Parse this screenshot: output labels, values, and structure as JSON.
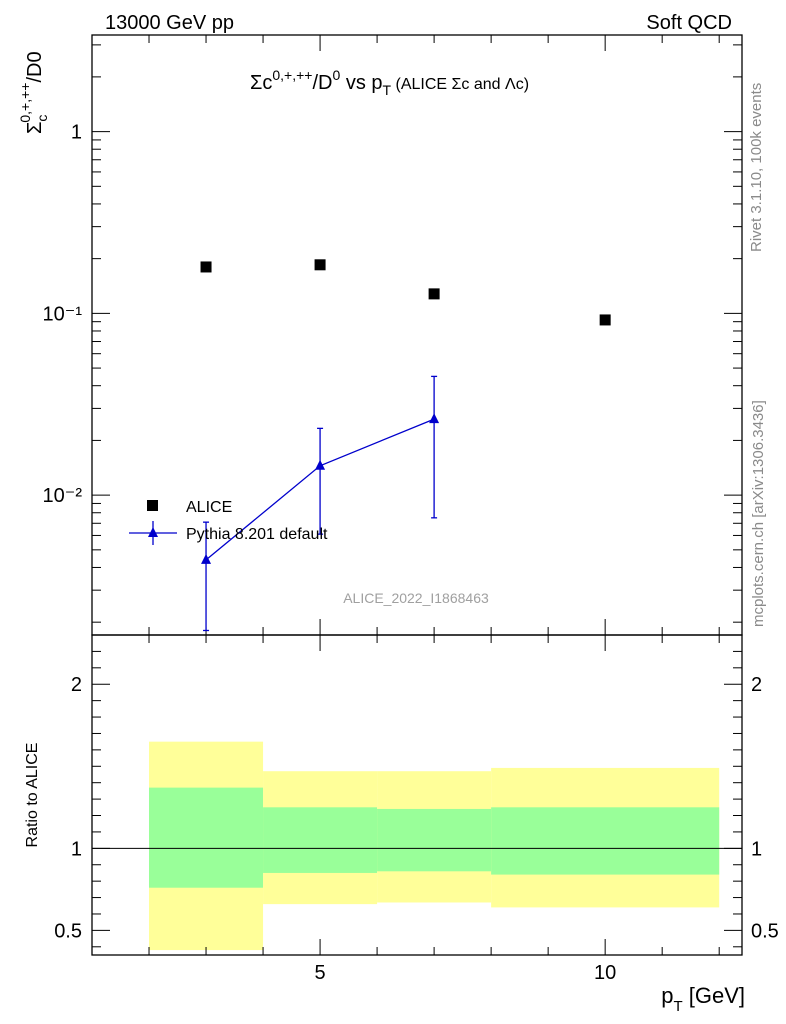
{
  "header": {
    "left": "13000 GeV pp",
    "right": "Soft QCD"
  },
  "main_plot": {
    "title_main": "Σc",
    "title_sup1": "0,+,++",
    "title_mid": "/D",
    "title_sup2": "0",
    "title_vs": " vs p",
    "title_sub": "T",
    "title_paren": " (ALICE Σc and Λc)",
    "ylabel_sigma": "Σ",
    "ylabel_sub": "c",
    "ylabel_sup": "0,+,++",
    "ylabel_rest": "/D0",
    "watermark": "ALICE_2022_I1868463"
  },
  "ratio_plot": {
    "ylabel": "Ratio to ALICE"
  },
  "x_axis": {
    "label_p": "p",
    "label_sub": "T",
    "label_unit": " [GeV]",
    "ticks": [
      "5",
      "10"
    ]
  },
  "side_text": {
    "rivet": "Rivet 3.1.10,  100k events",
    "mcplots": "mcplots.cern.ch [arXiv:1306.3436]"
  },
  "legend": {
    "alice": "ALICE",
    "pythia": "Pythia 8.201 default"
  },
  "chart_data": [
    {
      "type": "scatter",
      "xlim": [
        1,
        12.4
      ],
      "ylim": [
        0.0017,
        3.4
      ],
      "yscale": "log",
      "y_ticks": [
        "1",
        "10⁻¹",
        "10⁻²"
      ],
      "grid": false,
      "legend_position": "lower-left",
      "series": [
        {
          "name": "ALICE",
          "color": "#000000",
          "marker": "square",
          "x": [
            3,
            5,
            7,
            10
          ],
          "y": [
            0.18,
            0.185,
            0.128,
            0.092
          ]
        },
        {
          "name": "Pythia 8.201 default",
          "color": "#0000cc",
          "marker": "triangle",
          "x": [
            3,
            5,
            7
          ],
          "y": [
            0.0044,
            0.0145,
            0.0262
          ],
          "xerr": [
            1,
            1,
            1
          ],
          "yerr_low": [
            0.0026,
            0.0084,
            0.0187
          ],
          "yerr_high": [
            0.0027,
            0.0088,
            0.0188
          ]
        }
      ]
    },
    {
      "type": "area",
      "ylim": [
        0.35,
        2.3
      ],
      "y_ticks": [
        "0.5",
        "1",
        "2"
      ],
      "reference_line": 1,
      "bins": [
        [
          2,
          4
        ],
        [
          4,
          6
        ],
        [
          6,
          8
        ],
        [
          8,
          12
        ]
      ],
      "band_outer": {
        "color": "#ffff99",
        "low": [
          0.38,
          0.66,
          0.67,
          0.64
        ],
        "high": [
          1.65,
          1.47,
          1.47,
          1.49
        ]
      },
      "band_inner": {
        "color": "#99ff99",
        "low": [
          0.76,
          0.85,
          0.86,
          0.84
        ],
        "high": [
          1.37,
          1.25,
          1.24,
          1.25
        ]
      }
    }
  ]
}
